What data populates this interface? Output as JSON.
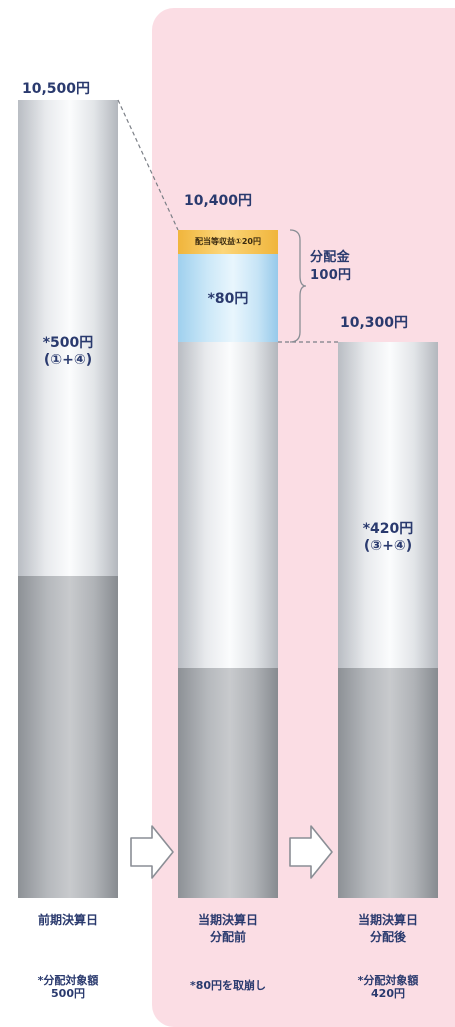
{
  "columns": [
    {
      "top_value": "10,500円",
      "bar_label": "*500円",
      "bar_sub": "(①+④)",
      "footer": "前期決算日",
      "note_line1": "*分配対象額",
      "note_line2": "500円"
    },
    {
      "top_value": "10,400円",
      "box_top": "配当等収益①20円",
      "box_main": "*80円",
      "footer_line1": "当期決算日",
      "footer_line2": "分配前",
      "note_line1": "*80円を取崩し"
    },
    {
      "top_value": "10,300円",
      "bar_label": "*420円",
      "bar_sub": "(③+④)",
      "footer_line1": "当期決算日",
      "footer_line2": "分配後",
      "note_line1": "*分配対象額",
      "note_line2": "420円"
    }
  ],
  "distribution": {
    "label_line1": "分配金",
    "label_line2": "100円"
  },
  "colors": {
    "text": "#2a3a6e",
    "panel": "#fbdde4",
    "light_cylinder": "#e8eaed",
    "dark_cylinder": "#b6b9bd",
    "blue_box": "#cce8f8",
    "gold_box": "#fcd67a"
  }
}
